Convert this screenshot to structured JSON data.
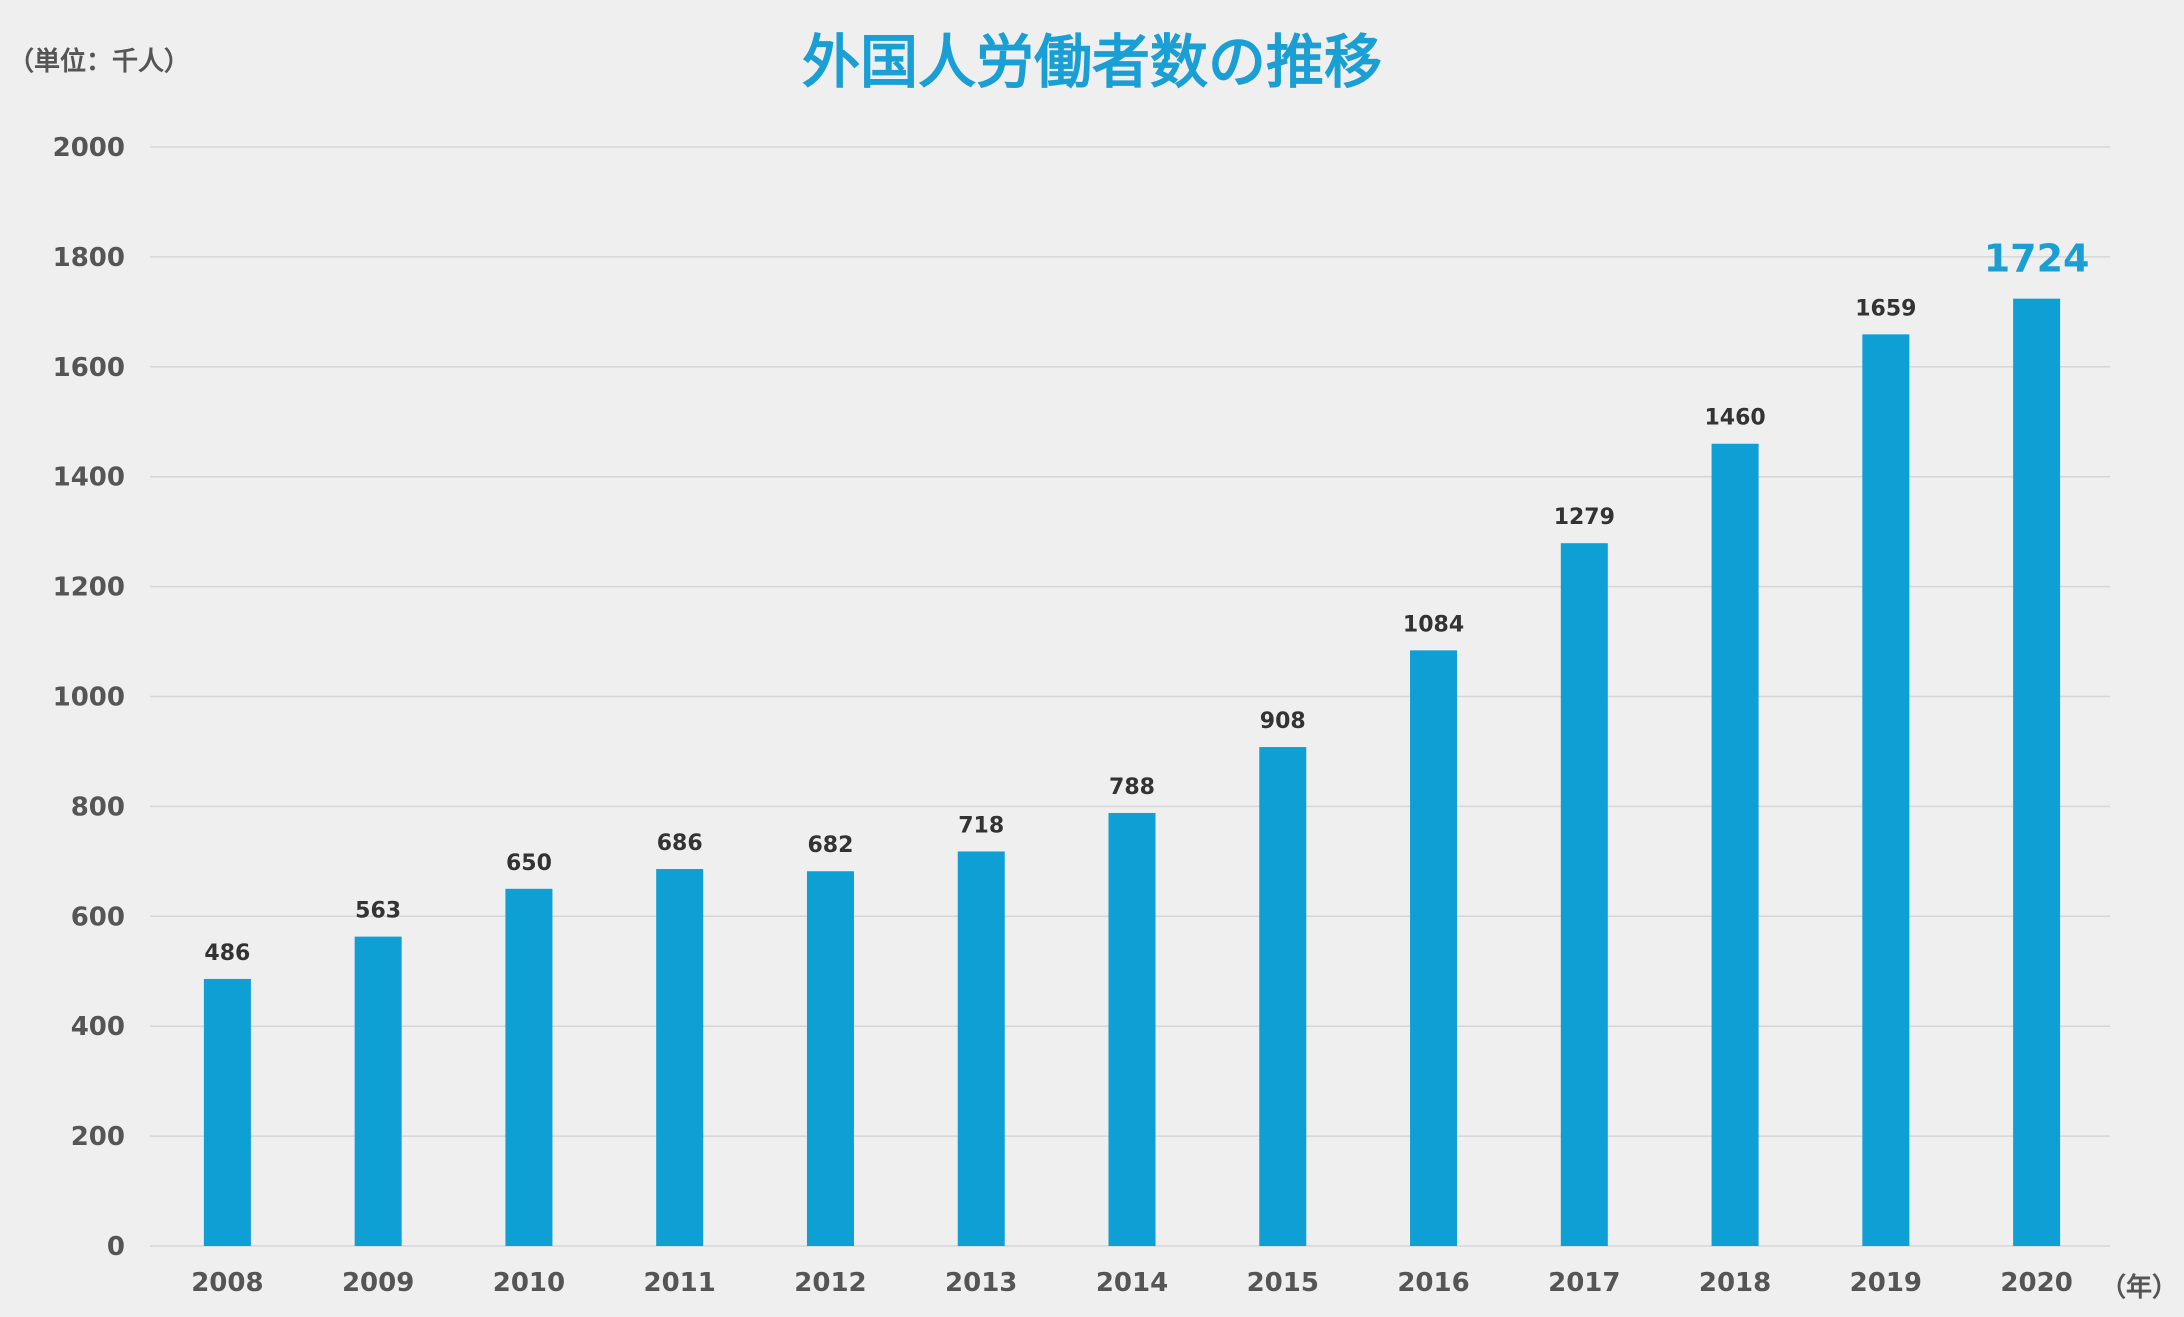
{
  "chart_data": {
    "type": "bar",
    "title": "外国人労働者数の推移",
    "unit_label": "（単位：千人）",
    "x_unit_label": "（年）",
    "categories": [
      "2008",
      "2009",
      "2010",
      "2011",
      "2012",
      "2013",
      "2014",
      "2015",
      "2016",
      "2017",
      "2018",
      "2019",
      "2020"
    ],
    "values": [
      486,
      563,
      650,
      686,
      682,
      718,
      788,
      908,
      1084,
      1279,
      1460,
      1659,
      1724
    ],
    "ylim": [
      0,
      2000
    ],
    "yticks": [
      0,
      200,
      400,
      600,
      800,
      1000,
      1200,
      1400,
      1600,
      1800,
      2000
    ],
    "grid": true,
    "legend": "none",
    "highlight_index": 12,
    "colors": {
      "bar": "#0e9fd4",
      "title": "#1a9fd4",
      "highlight_label": "#1a9fd4",
      "label": "#333333",
      "axis_text": "#555555",
      "grid": "#d6d6d6",
      "background": "#efefef"
    }
  }
}
